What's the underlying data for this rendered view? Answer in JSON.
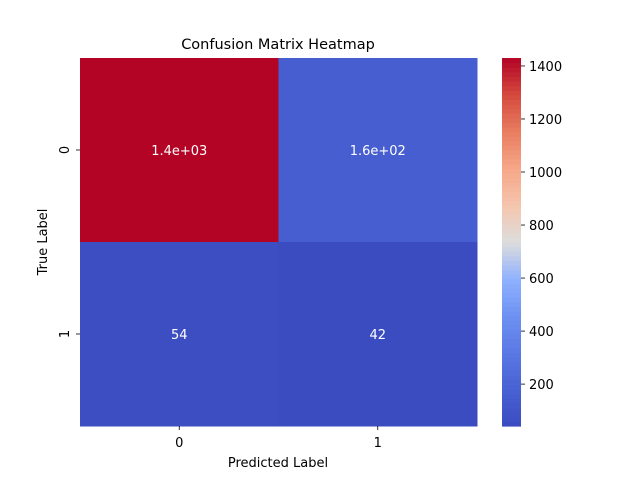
{
  "chart_data": {
    "type": "heatmap",
    "title": "Confusion Matrix Heatmap",
    "xlabel": "Predicted Label",
    "ylabel": "True Label",
    "x_categories": [
      "0",
      "1"
    ],
    "y_categories": [
      "0",
      "1"
    ],
    "values": [
      [
        1430,
        160
      ],
      [
        54,
        42
      ]
    ],
    "annotations": [
      [
        "1.4e+03",
        "1.6e+02"
      ],
      [
        "54",
        "42"
      ]
    ],
    "colorbar": {
      "range": [
        42,
        1430
      ],
      "ticks": [
        200,
        400,
        600,
        800,
        1000,
        1200,
        1400
      ],
      "tick_labels": [
        "200",
        "400",
        "600",
        "800",
        "1000",
        "1200",
        "1400"
      ],
      "colormap": "coolwarm"
    },
    "colors": {
      "low": "#3b4cc0",
      "mid": "#dddddd",
      "high": "#b40426"
    }
  }
}
